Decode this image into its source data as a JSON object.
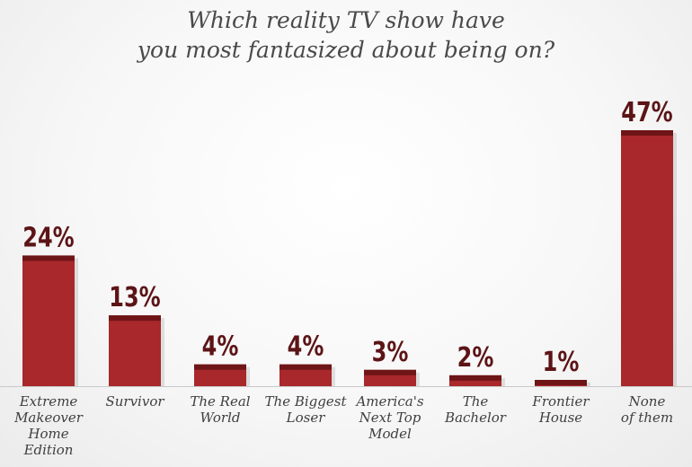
{
  "chart_data": {
    "type": "bar",
    "title_lines": [
      "Which reality TV show have",
      "you most fantasized about being on?"
    ],
    "categories": [
      [
        "Extreme",
        "Makeover",
        "Home",
        "Edition"
      ],
      [
        "Survivor"
      ],
      [
        "The Real",
        "World"
      ],
      [
        "The Biggest",
        "Loser"
      ],
      [
        "America's",
        "Next Top",
        "Model"
      ],
      [
        "The",
        "Bachelor"
      ],
      [
        "Frontier",
        "House"
      ],
      [
        "None",
        "of them"
      ]
    ],
    "values": [
      24,
      13,
      4,
      4,
      3,
      2,
      1,
      47
    ],
    "value_labels": [
      "24%",
      "13%",
      "4%",
      "4%",
      "3%",
      "2%",
      "1%",
      "47%"
    ],
    "ylim": [
      0,
      47
    ],
    "grid": false,
    "legend": "none",
    "colors": {
      "bar": "#a8282b",
      "bar_top": "#6e1517",
      "value_label": "#5c1416",
      "baseline": "#c9c9c9"
    }
  }
}
